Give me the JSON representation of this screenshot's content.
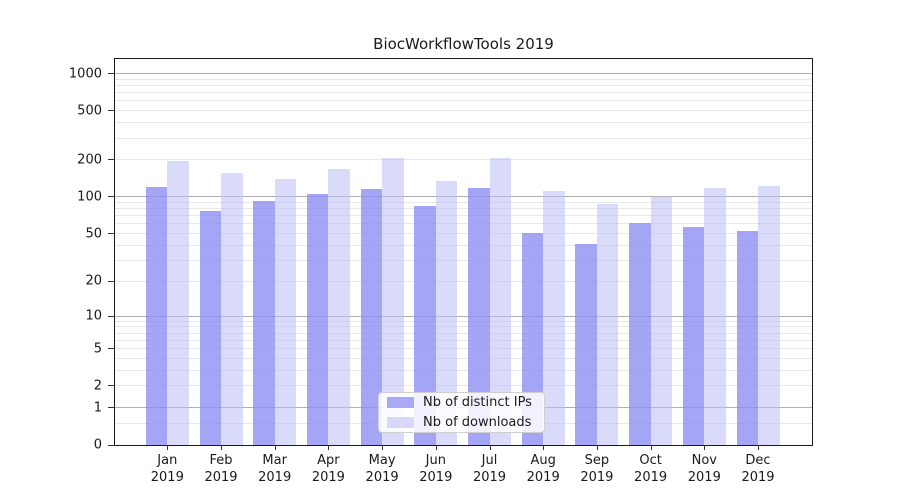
{
  "title": "BiocWorkflowTools 2019",
  "chart_data": {
    "type": "bar",
    "title": "BiocWorkflowTools 2019",
    "x_categories": [
      "Jan 2019",
      "Feb 2019",
      "Mar 2019",
      "Apr 2019",
      "May 2019",
      "Jun 2019",
      "Jul 2019",
      "Aug 2019",
      "Sep 2019",
      "Oct 2019",
      "Nov 2019",
      "Dec 2019"
    ],
    "series": [
      {
        "name": "Nb of distinct IPs",
        "color": "#a9a9f5",
        "fill": "rgba(140,140,244,0.78)",
        "values": [
          120,
          77,
          92,
          105,
          116,
          84,
          118,
          51,
          41,
          61,
          57,
          53
        ]
      },
      {
        "name": "Nb of downloads",
        "color": "#d8d8fa",
        "fill": "rgba(187,187,248,0.55)",
        "values": [
          195,
          155,
          139,
          168,
          206,
          135,
          207,
          111,
          87,
          100,
          119,
          122
        ]
      }
    ],
    "y_axis": {
      "scale": "log10(v+1)",
      "ticks": [
        0,
        1,
        2,
        5,
        10,
        20,
        50,
        100,
        200,
        500,
        1000
      ],
      "top_value": 1310,
      "major_gridlines": [
        1,
        10,
        100,
        1000
      ],
      "minor_gridlines": [
        0.5,
        2,
        3,
        4,
        5,
        6,
        7,
        8,
        9,
        20,
        30,
        40,
        50,
        60,
        70,
        80,
        90,
        200,
        300,
        400,
        500,
        600,
        700,
        800,
        900
      ]
    },
    "grid": "on",
    "legend_position": "inside-bottom-center"
  },
  "x_axis": {
    "months": [
      "Jan",
      "Feb",
      "Mar",
      "Apr",
      "May",
      "Jun",
      "Jul",
      "Aug",
      "Sep",
      "Oct",
      "Nov",
      "Dec"
    ],
    "year": "2019"
  },
  "legend": {
    "items": [
      "Nb of distinct IPs",
      "Nb of downloads"
    ]
  }
}
